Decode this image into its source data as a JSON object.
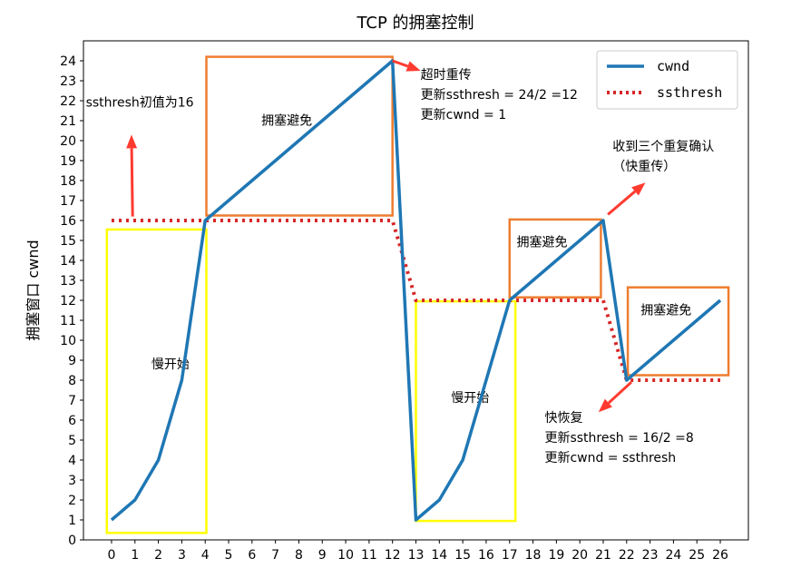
{
  "chart_data": {
    "type": "line",
    "title": "TCP 的拥塞控制",
    "xlabel": "",
    "ylabel": "拥塞窗口 cwnd",
    "x": [
      0,
      1,
      2,
      3,
      4,
      5,
      6,
      7,
      8,
      9,
      10,
      11,
      12,
      13,
      14,
      15,
      16,
      17,
      18,
      19,
      20,
      21,
      22,
      23,
      24,
      25,
      26
    ],
    "xlim": [
      -1.2,
      27.2
    ],
    "ylim": [
      0,
      25
    ],
    "xticks": [
      "0",
      "1",
      "2",
      "3",
      "4",
      "5",
      "6",
      "7",
      "8",
      "9",
      "10",
      "11",
      "12",
      "13",
      "14",
      "15",
      "16",
      "17",
      "18",
      "19",
      "20",
      "21",
      "22",
      "23",
      "24",
      "25",
      "26"
    ],
    "yticks": [
      "0",
      "1",
      "2",
      "3",
      "4",
      "5",
      "6",
      "7",
      "8",
      "9",
      "10",
      "11",
      "12",
      "13",
      "14",
      "15",
      "16",
      "17",
      "18",
      "19",
      "20",
      "21",
      "22",
      "23",
      "24"
    ],
    "grid": false,
    "legend_position": "top-right",
    "series": [
      {
        "name": "cwnd",
        "color": "#1f77b4",
        "style": "solid",
        "x": [
          0,
          1,
          2,
          3,
          4,
          5,
          6,
          7,
          8,
          9,
          10,
          11,
          12,
          13,
          14,
          15,
          16,
          17,
          18,
          19,
          20,
          21,
          22,
          23,
          24,
          25,
          26
        ],
        "values": [
          1,
          2,
          4,
          8,
          16,
          17,
          18,
          19,
          20,
          21,
          22,
          23,
          24,
          1,
          2,
          4,
          8,
          12,
          13,
          14,
          15,
          16,
          8,
          9,
          10,
          11,
          12
        ]
      },
      {
        "name": "ssthresh",
        "color": "#d62728",
        "style": "dotted",
        "x": [
          0,
          1,
          2,
          3,
          4,
          5,
          6,
          7,
          8,
          9,
          10,
          11,
          12,
          13,
          14,
          15,
          16,
          17,
          18,
          19,
          20,
          21,
          22,
          23,
          24,
          25,
          26
        ],
        "values": [
          16,
          16,
          16,
          16,
          16,
          16,
          16,
          16,
          16,
          16,
          16,
          16,
          16,
          12,
          12,
          12,
          12,
          12,
          12,
          12,
          12,
          12,
          8,
          8,
          8,
          8,
          8
        ]
      }
    ],
    "regions": [
      {
        "label": "慢开始",
        "x0": -0.2,
        "x1": 4.05,
        "y0": 0.35,
        "y1": 15.55,
        "color": "#ffff00",
        "lx": 1.7,
        "ly": 8.6
      },
      {
        "label": "拥塞避免",
        "x0": 4.05,
        "x1": 12.0,
        "y0": 16.25,
        "y1": 24.2,
        "color": "#ed7d31",
        "lx": 6.4,
        "ly": 20.8
      },
      {
        "label": "慢开始",
        "x0": 13.0,
        "x1": 17.25,
        "y0": 0.95,
        "y1": 11.95,
        "color": "#ffff00",
        "lx": 14.5,
        "ly": 6.9
      },
      {
        "label": "拥塞避免",
        "x0": 17.0,
        "x1": 20.9,
        "y0": 12.15,
        "y1": 16.05,
        "color": "#ed7d31",
        "lx": 17.3,
        "ly": 14.7
      },
      {
        "label": "拥塞避免",
        "x0": 22.05,
        "x1": 26.35,
        "y0": 8.25,
        "y1": 12.65,
        "color": "#ed7d31",
        "lx": 22.6,
        "ly": 11.3
      }
    ],
    "annotations": [
      {
        "lines": [
          "ssthresh初值为16"
        ],
        "tx": -1.1,
        "ty": 21.7
      },
      {
        "lines": [
          "超时重传",
          "更新ssthresh = 24/2 =12",
          "更新cwnd = 1"
        ],
        "tx": 13.2,
        "ty": 23.1
      },
      {
        "lines": [
          "收到三个重复确认",
          "（快重传）"
        ],
        "tx": 21.4,
        "ty": 19.5
      },
      {
        "lines": [
          "快恢复",
          "更新ssthresh = 16/2 =8",
          "更新cwnd = ssthresh"
        ],
        "tx": 18.5,
        "ty": 5.9
      }
    ],
    "arrows": [
      {
        "x0": 0.9,
        "y0": 16.2,
        "x1": 0.85,
        "y1": 20.3
      },
      {
        "x0": 12.0,
        "y0": 24.0,
        "x1": 13.2,
        "y1": 23.5
      },
      {
        "x0": 21.2,
        "y0": 16.3,
        "x1": 22.8,
        "y1": 17.9
      },
      {
        "x0": 22.2,
        "y0": 7.9,
        "x1": 20.8,
        "y1": 6.4
      }
    ]
  }
}
